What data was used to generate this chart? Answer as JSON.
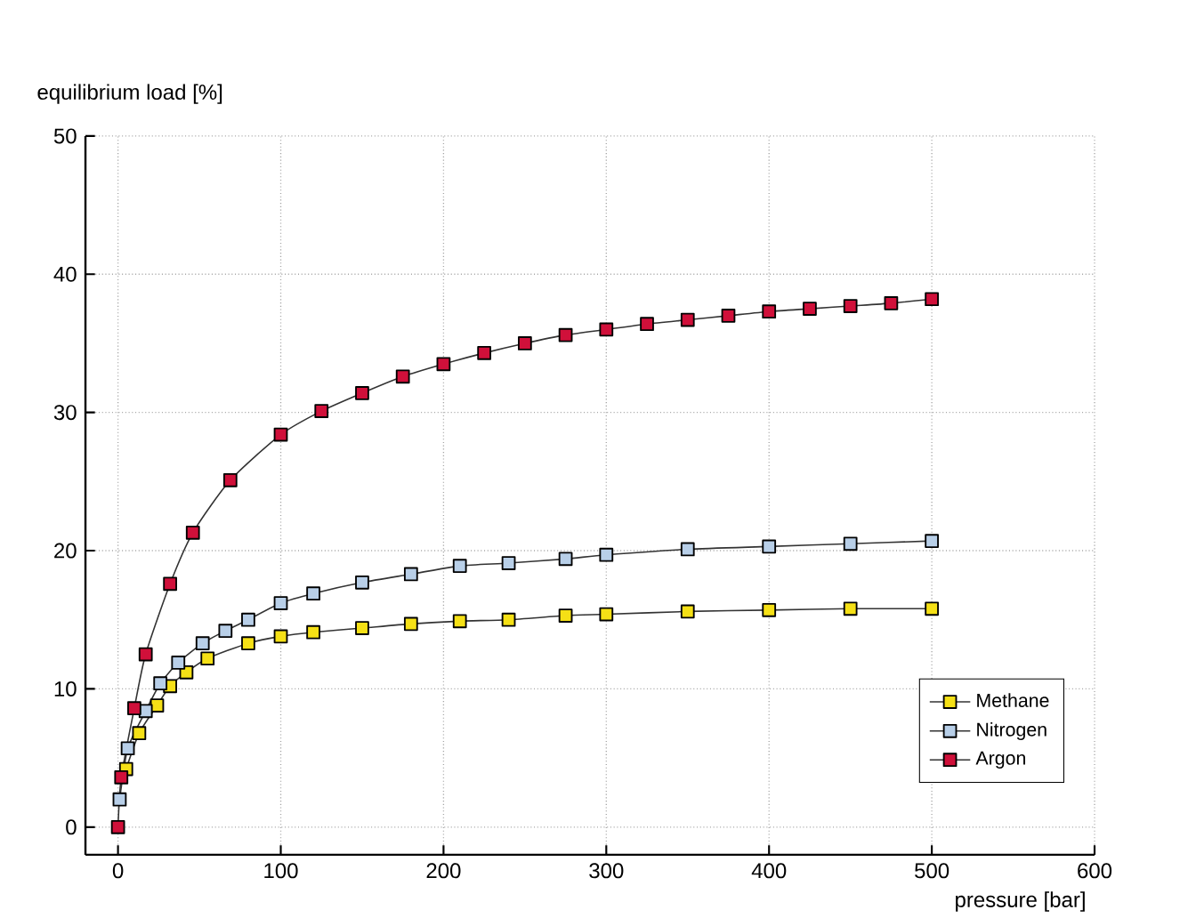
{
  "chart_data": {
    "type": "line",
    "xlabel": "pressure [bar]",
    "ylabel": "equilibrium load [%]",
    "xlim": [
      -20,
      600
    ],
    "ylim": [
      -2,
      50
    ],
    "xticks": [
      0,
      100,
      200,
      300,
      400,
      500,
      600
    ],
    "yticks": [
      0,
      10,
      20,
      30,
      40,
      50
    ],
    "grid": true,
    "legend": "bottom right",
    "marker": "square",
    "line_style": "solid",
    "series": [
      {
        "name": "Methane",
        "color": "#f5e016",
        "x": [
          5,
          13,
          24,
          32,
          42,
          55,
          80,
          100,
          120,
          150,
          180,
          210,
          240,
          275,
          300,
          350,
          400,
          450,
          500
        ],
        "values": [
          4.2,
          6.8,
          8.8,
          10.2,
          11.2,
          12.2,
          13.3,
          13.8,
          14.1,
          14.4,
          14.7,
          14.9,
          15.0,
          15.3,
          15.4,
          15.6,
          15.7,
          15.8,
          15.8
        ]
      },
      {
        "name": "Nitrogen",
        "color": "#b8cfe8",
        "x": [
          1,
          6,
          17,
          26,
          37,
          52,
          66,
          80,
          100,
          120,
          150,
          180,
          210,
          240,
          275,
          300,
          350,
          400,
          450,
          500
        ],
        "values": [
          2.0,
          5.7,
          8.4,
          10.4,
          11.9,
          13.3,
          14.2,
          15.0,
          16.2,
          16.9,
          17.7,
          18.3,
          18.9,
          19.1,
          19.4,
          19.7,
          20.1,
          20.3,
          20.5,
          20.7
        ]
      },
      {
        "name": "Argon",
        "color": "#d0103a",
        "x": [
          0,
          2,
          10,
          17,
          32,
          46,
          69,
          100,
          125,
          150,
          175,
          200,
          225,
          250,
          275,
          300,
          325,
          350,
          375,
          400,
          425,
          450,
          475,
          500
        ],
        "values": [
          0,
          3.6,
          8.6,
          12.5,
          17.6,
          21.3,
          25.1,
          28.4,
          30.1,
          31.4,
          32.6,
          33.5,
          34.3,
          35.0,
          35.6,
          36.0,
          36.4,
          36.7,
          37.0,
          37.3,
          37.5,
          37.7,
          37.9,
          38.2
        ]
      }
    ]
  }
}
